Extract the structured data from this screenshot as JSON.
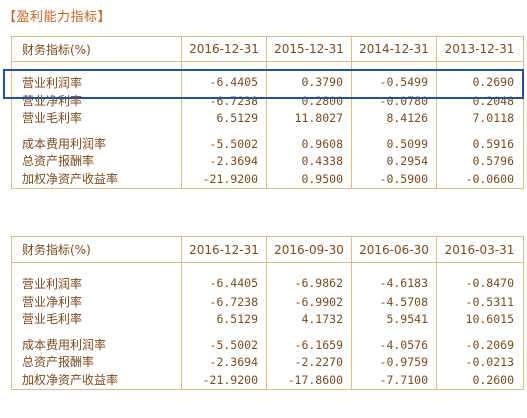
{
  "title": "【盈利能力指标】",
  "table1": {
    "header": [
      "财务指标(%)",
      "2016-12-31",
      "2015-12-31",
      "2014-12-31",
      "2013-12-31"
    ],
    "group1": [
      {
        "name": "营业利润率",
        "values": [
          "-6.4405",
          "0.3790",
          "-0.5499",
          "0.2690"
        ]
      },
      {
        "name": "营业净利率",
        "values": [
          "-6.7238",
          "0.2800",
          "-0.0780",
          "0.2048"
        ]
      },
      {
        "name": "营业毛利率",
        "values": [
          "6.5129",
          "11.8027",
          "8.4126",
          "7.0118"
        ]
      }
    ],
    "group2": [
      {
        "name": "成本费用利润率",
        "values": [
          "-5.5002",
          "0.9608",
          "0.5099",
          "0.5916"
        ]
      },
      {
        "name": "总资产报酬率",
        "values": [
          "-2.3694",
          "0.4338",
          "0.2954",
          "0.5796"
        ]
      },
      {
        "name": "加权净资产收益率",
        "values": [
          "-21.9200",
          "0.9500",
          "-0.5900",
          "-0.0600"
        ]
      }
    ]
  },
  "table2": {
    "header": [
      "财务指标(%)",
      "2016-12-31",
      "2016-09-30",
      "2016-06-30",
      "2016-03-31"
    ],
    "group1": [
      {
        "name": "营业利润率",
        "values": [
          "-6.4405",
          "-6.9862",
          "-4.6183",
          "-0.8470"
        ]
      },
      {
        "name": "营业净利率",
        "values": [
          "-6.7238",
          "-6.9902",
          "-4.5708",
          "-0.5311"
        ]
      },
      {
        "name": "营业毛利率",
        "values": [
          "6.5129",
          "4.1732",
          "5.9541",
          "10.6015"
        ]
      }
    ],
    "group2": [
      {
        "name": "成本费用利润率",
        "values": [
          "-5.5002",
          "-6.1659",
          "-4.0576",
          "-0.2069"
        ]
      },
      {
        "name": "总资产报酬率",
        "values": [
          "-2.3694",
          "-2.2270",
          "-0.9759",
          "-0.0213"
        ]
      },
      {
        "name": "加权净资产收益率",
        "values": [
          "-21.9200",
          "-17.8600",
          "-7.7100",
          "0.2600"
        ]
      }
    ]
  },
  "colors": {
    "text": "#7a4a1e",
    "title": "#c8651e",
    "border": "#e3b98a",
    "highlight": "#24508f"
  }
}
